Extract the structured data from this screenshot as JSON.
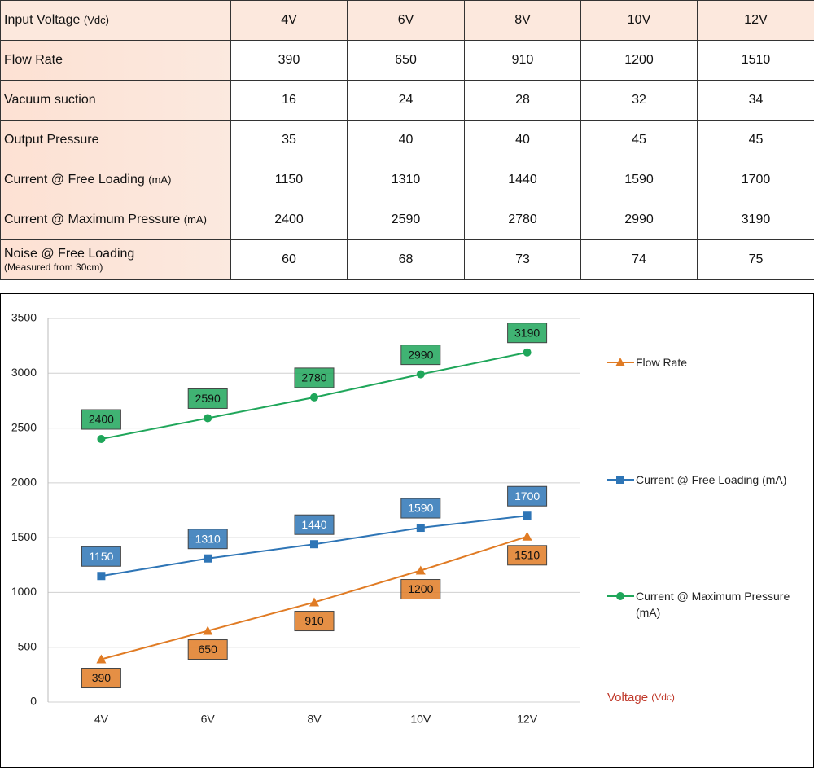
{
  "table": {
    "header": {
      "label": "Input Voltage",
      "unit": "(Vdc)",
      "cells": [
        "4V",
        "6V",
        "8V",
        "10V",
        "12V"
      ]
    },
    "rows": [
      {
        "label": "Flow Rate",
        "values": [
          390,
          650,
          910,
          1200,
          1510
        ]
      },
      {
        "label": "Vacuum suction",
        "values": [
          16,
          24,
          28,
          32,
          34
        ]
      },
      {
        "label": "Output Pressure",
        "values": [
          35,
          40,
          40,
          45,
          45
        ]
      },
      {
        "label": "Current @ Free Loading",
        "unit": "(mA)",
        "values": [
          1150,
          1310,
          1440,
          1590,
          1700
        ]
      },
      {
        "label": "Current @ Maximum Pressure",
        "unit": "(mA)",
        "values": [
          2400,
          2590,
          2780,
          2990,
          3190
        ]
      },
      {
        "label": "Noise @ Free Loading",
        "note": "(Measured from 30cm)",
        "values": [
          60,
          68,
          73,
          74,
          75
        ]
      }
    ]
  },
  "chart_data": {
    "type": "line",
    "x_label": "Voltage",
    "x_unit": "(Vdc)",
    "categories": [
      "4V",
      "6V",
      "8V",
      "10V",
      "12V"
    ],
    "series": [
      {
        "name": "Flow Rate",
        "color": "#e07b24",
        "marker": "triangle",
        "values": [
          390,
          650,
          910,
          1200,
          1510
        ]
      },
      {
        "name": "Current @ Free Loading (mA)",
        "color": "#2e75b6",
        "marker": "square",
        "values": [
          1150,
          1310,
          1440,
          1590,
          1700
        ]
      },
      {
        "name": "Current @ Maximum Pressure (mA)",
        "color": "#1fa65a",
        "marker": "circle",
        "values": [
          2400,
          2590,
          2780,
          2990,
          3190
        ]
      }
    ],
    "ylim": [
      0,
      3500
    ],
    "yticks": [
      0,
      500,
      1000,
      1500,
      2000,
      2500,
      3000,
      3500
    ],
    "grid": true,
    "legend": "right"
  }
}
